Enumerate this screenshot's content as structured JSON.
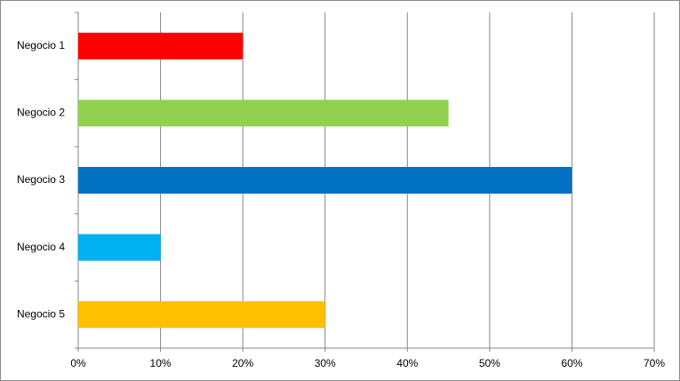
{
  "chart_data": {
    "type": "bar",
    "orientation": "horizontal",
    "categories": [
      "Negocio 1",
      "Negocio 2",
      "Negocio 3",
      "Negocio 4",
      "Negocio 5"
    ],
    "values": [
      20,
      45,
      60,
      10,
      30
    ],
    "colors": [
      "#ff0000",
      "#92d050",
      "#0070c0",
      "#00b0f0",
      "#ffc000"
    ],
    "xlim": [
      0,
      70
    ],
    "xticks": [
      {
        "value": 0,
        "label": "0%"
      },
      {
        "value": 10,
        "label": "10%"
      },
      {
        "value": 20,
        "label": "20%"
      },
      {
        "value": 30,
        "label": "30%"
      },
      {
        "value": 40,
        "label": "40%"
      },
      {
        "value": 50,
        "label": "50%"
      },
      {
        "value": 60,
        "label": "60%"
      },
      {
        "value": 70,
        "label": "70%"
      }
    ],
    "grid": true
  }
}
